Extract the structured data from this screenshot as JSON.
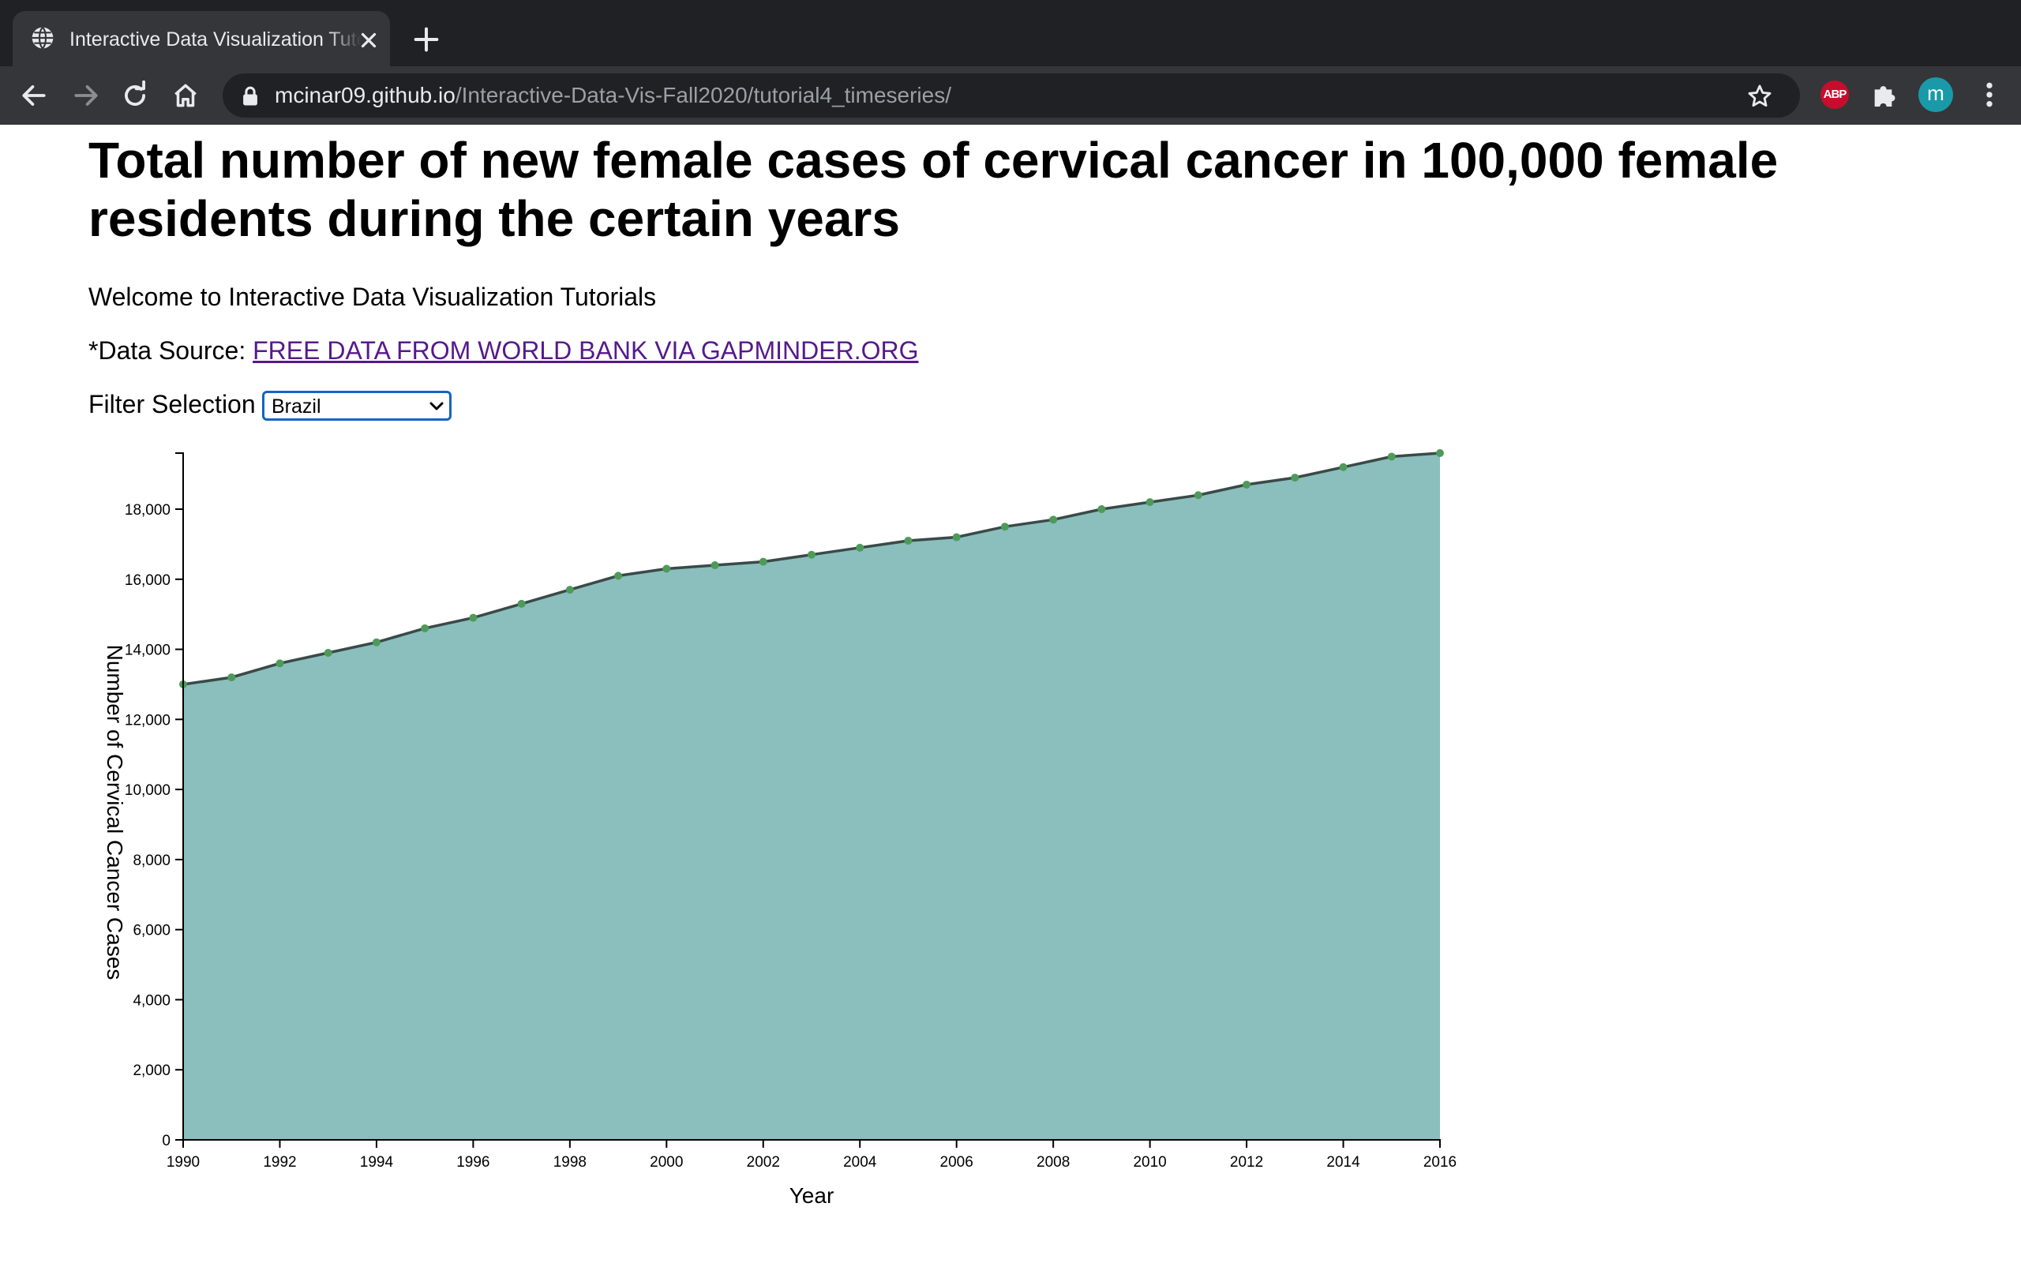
{
  "browser": {
    "tab_title": "Interactive Data Visualization Tutorials",
    "url_host": "mcinar09.github.io",
    "url_path": "/Interactive-Data-Vis-Fall2020/tutorial4_timeseries/",
    "extension_abp": "ABP",
    "profile_initial": "m",
    "icons": [
      "globe-icon",
      "close-icon",
      "plus-icon",
      "back-arrow-icon",
      "forward-arrow-icon",
      "reload-icon",
      "home-icon",
      "lock-icon",
      "star-icon",
      "puzzle-icon",
      "more-vert-icon"
    ]
  },
  "page": {
    "title": "Total number of new female cases of cervical cancer in 100,000 female residents during the certain years",
    "welcome": "Welcome to Interactive Data Visualization Tutorials",
    "source_label": "*Data Source: ",
    "source_link": "FREE DATA FROM WORLD BANK VIA GAPMINDER.ORG",
    "filter_label": "Filter Selection",
    "filter_value": "Brazil",
    "link_color": "#551a8b"
  },
  "chart_data": {
    "type": "area",
    "x": [
      1990,
      1991,
      1992,
      1993,
      1994,
      1995,
      1996,
      1997,
      1998,
      1999,
      2000,
      2001,
      2002,
      2003,
      2004,
      2005,
      2006,
      2007,
      2008,
      2009,
      2010,
      2011,
      2012,
      2013,
      2014,
      2015,
      2016
    ],
    "values": [
      13000,
      13200,
      13600,
      13900,
      14200,
      14600,
      14900,
      15300,
      15700,
      16100,
      16300,
      16400,
      16500,
      16700,
      16900,
      17100,
      17200,
      17500,
      17700,
      18000,
      18200,
      18400,
      18700,
      18900,
      19200,
      19500,
      19600
    ],
    "xlabel": "Year",
    "ylabel": "Number of Cervical Cancer Cases",
    "xlim": [
      1990,
      2016
    ],
    "ylim": [
      0,
      19600
    ],
    "x_ticks": [
      1990,
      1992,
      1994,
      1996,
      1998,
      2000,
      2002,
      2004,
      2006,
      2008,
      2010,
      2012,
      2014,
      2016
    ],
    "x_tick_labels": [
      "1990",
      "1992",
      "1994",
      "1996",
      "1998",
      "2000",
      "2002",
      "2004",
      "2006",
      "2008",
      "2010",
      "2012",
      "2014",
      "2016"
    ],
    "y_ticks": [
      0,
      2000,
      4000,
      6000,
      8000,
      10000,
      12000,
      14000,
      16000,
      18000
    ],
    "y_tick_labels": [
      "0",
      "2,000",
      "4,000",
      "6,000",
      "8,000",
      "10,000",
      "12,000",
      "14,000",
      "16,000",
      "18,000"
    ],
    "grid": false,
    "colors": {
      "area": "#8abfbd",
      "line": "#3b4a47",
      "points": "#4e9a5a"
    }
  }
}
